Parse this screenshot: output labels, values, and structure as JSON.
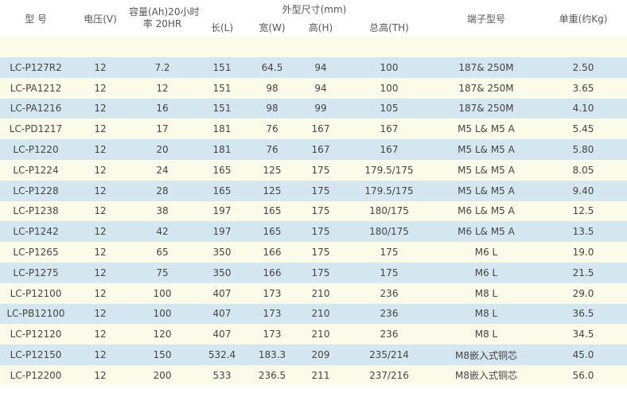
{
  "headers": {
    "model": "型 号",
    "voltage": "电压(V)",
    "capacity_line1": "容量(Ah)20小时",
    "capacity_line2": "率 20HR",
    "dimensions": "外型尺寸(mm)",
    "length": "长(L)",
    "width": "宽(W)",
    "height": "高(H)",
    "total_height": "总高(TH)",
    "terminal": "端子型号",
    "weight": "单重(约Kg)"
  },
  "rows": [
    {
      "model": "LC-P127R2",
      "voltage": "12",
      "capacity": "7.2",
      "length": "151",
      "width": "64.5",
      "height": "94",
      "total_height": "100",
      "terminal": "187& 250M",
      "weight": "2.50"
    },
    {
      "model": "LC-PA1212",
      "voltage": "12",
      "capacity": "12",
      "length": "151",
      "width": "98",
      "height": "94",
      "total_height": "100",
      "terminal": "187& 250M",
      "weight": "3.65"
    },
    {
      "model": "LC-PA1216",
      "voltage": "12",
      "capacity": "16",
      "length": "151",
      "width": "98",
      "height": "99",
      "total_height": "105",
      "terminal": "187& 250M",
      "weight": "4.10"
    },
    {
      "model": "LC-PD1217",
      "voltage": "12",
      "capacity": "17",
      "length": "181",
      "width": "76",
      "height": "167",
      "total_height": "167",
      "terminal": "M5 L& M5 A",
      "weight": "5.45"
    },
    {
      "model": "LC-P1220",
      "voltage": "12",
      "capacity": "20",
      "length": "181",
      "width": "76",
      "height": "167",
      "total_height": "167",
      "terminal": "M5 L& M5 A",
      "weight": "5.80"
    },
    {
      "model": "LC-P1224",
      "voltage": "12",
      "capacity": "24",
      "length": "165",
      "width": "125",
      "height": "175",
      "total_height": "179.5/175",
      "terminal": "M5 L& M5 A",
      "weight": "8.05"
    },
    {
      "model": "LC-P1228",
      "voltage": "12",
      "capacity": "28",
      "length": "165",
      "width": "125",
      "height": "175",
      "total_height": "179.5/175",
      "terminal": "M5 L& M5 A",
      "weight": "9.40"
    },
    {
      "model": "LC-P1238",
      "voltage": "12",
      "capacity": "38",
      "length": "197",
      "width": "165",
      "height": "175",
      "total_height": "180/175",
      "terminal": "M6 L& M5 A",
      "weight": "12.5"
    },
    {
      "model": "LC-P1242",
      "voltage": "12",
      "capacity": "42",
      "length": "197",
      "width": "165",
      "height": "175",
      "total_height": "180/175",
      "terminal": "M6 L& M5 A",
      "weight": "13.5"
    },
    {
      "model": "LC-P1265",
      "voltage": "12",
      "capacity": "65",
      "length": "350",
      "width": "166",
      "height": "175",
      "total_height": "175",
      "terminal": "M6 L",
      "weight": "19.0"
    },
    {
      "model": "LC-P1275",
      "voltage": "12",
      "capacity": "75",
      "length": "350",
      "width": "166",
      "height": "175",
      "total_height": "175",
      "terminal": "M6 L",
      "weight": "21.5"
    },
    {
      "model": "LC-P12100",
      "voltage": "12",
      "capacity": "100",
      "length": "407",
      "width": "173",
      "height": "210",
      "total_height": "236",
      "terminal": "M8 L",
      "weight": "29.0"
    },
    {
      "model": "LC-PB12100",
      "voltage": "12",
      "capacity": "100",
      "length": "407",
      "width": "173",
      "height": "210",
      "total_height": "236",
      "terminal": "M8 L",
      "weight": "36.5"
    },
    {
      "model": "LC-P12120",
      "voltage": "12",
      "capacity": "120",
      "length": "407",
      "width": "173",
      "height": "210",
      "total_height": "236",
      "terminal": "M8 L",
      "weight": "34.5"
    },
    {
      "model": "LC-P12150",
      "voltage": "12",
      "capacity": "150",
      "length": "532.4",
      "width": "183.3",
      "height": "209",
      "total_height": "235/214",
      "terminal": "M8嵌入式铜芯",
      "weight": "45.0"
    },
    {
      "model": "LC-P12200",
      "voltage": "12",
      "capacity": "200",
      "length": "533",
      "width": "236.5",
      "height": "211",
      "total_height": "237/216",
      "terminal": "M8嵌入式铜芯",
      "weight": "56.0"
    }
  ]
}
